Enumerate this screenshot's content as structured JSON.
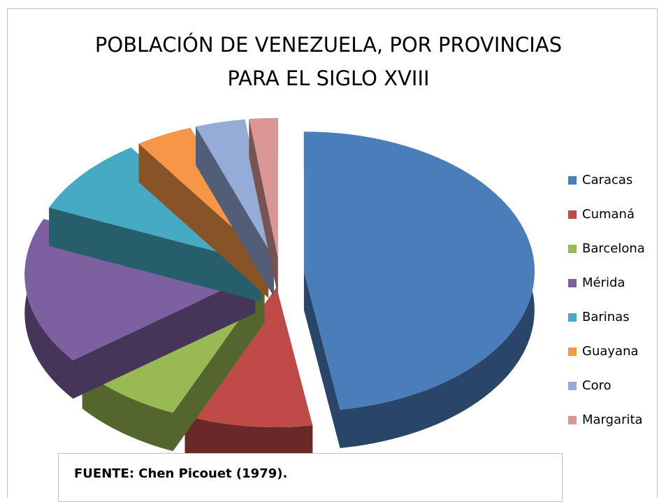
{
  "chart_data": {
    "type": "pie",
    "title": "POBLACIÓN DE VENEZUELA, POR PROVINCIAS PARA EL SIGLO XVIII",
    "categories": [
      "Caracas",
      "Cumaná",
      "Barcelona",
      "Mérida",
      "Barinas",
      "Guayana",
      "Coro",
      "Margarita"
    ],
    "values": [
      47.5,
      9,
      8,
      17,
      9,
      4,
      3.5,
      2
    ],
    "colors": [
      "#4a7ebb",
      "#be4b48",
      "#98b954",
      "#7d60a0",
      "#46aac5",
      "#f79646",
      "#95abd8",
      "#d99694"
    ],
    "legend": "right",
    "source": "FUENTE: Chen Picouet (1979)."
  }
}
